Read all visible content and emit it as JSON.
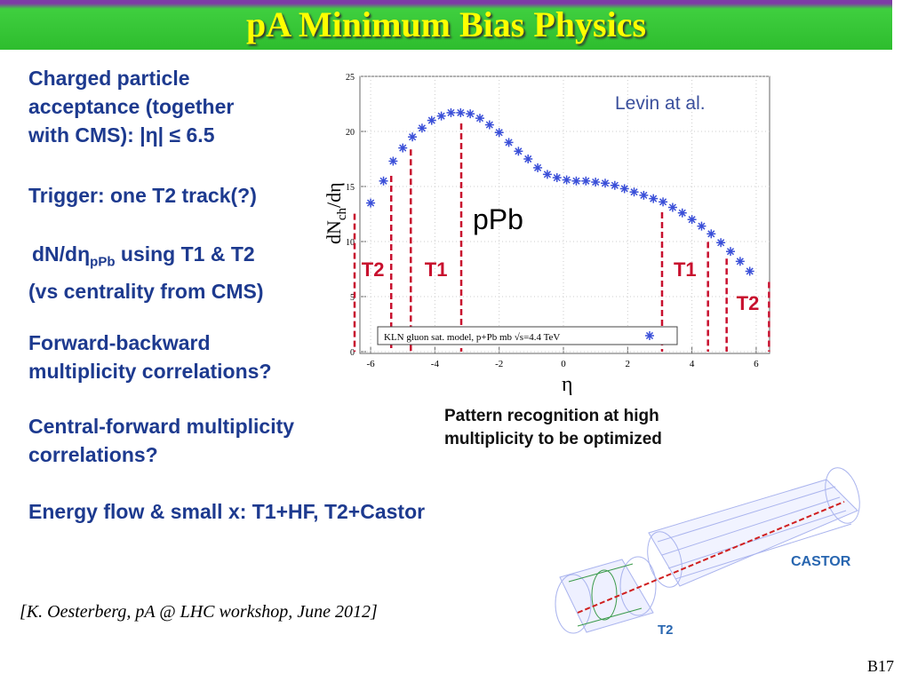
{
  "header": {
    "title": "pA Minimum Bias Physics"
  },
  "bullets": [
    {
      "lines": [
        "Charged particle",
        "acceptance (together",
        "with CMS): |η| ≤ 6.5"
      ]
    },
    {
      "lines": [
        "Trigger: one T2 track(?)"
      ]
    },
    {
      "main": "dN/dη",
      "sub": "pPb",
      "rest": " using T1 & T2",
      "line2": "(vs centrality from CMS)"
    },
    {
      "lines": [
        "Forward-backward",
        "multiplicity correlations?"
      ]
    },
    {
      "lines": [
        "Central-forward multiplicity",
        "correlations?"
      ]
    },
    {
      "lines": [
        "Energy flow & small x: T1+HF, T2+Castor"
      ]
    }
  ],
  "chart_data": {
    "type": "scatter",
    "ylabel": "dN",
    "ylabel_sub": "ch",
    "ylabel_rest": "/dη",
    "xlabel": "η",
    "annotations": [
      "Levin at al.",
      "pPb"
    ],
    "legend": "KLN gluon sat. model, p+Pb mb √s=4.4 TeV",
    "xlim": [
      -6.5,
      6.5
    ],
    "ylim": [
      0,
      25
    ],
    "xticks": [
      -6,
      -4,
      -2,
      0,
      2,
      4,
      6
    ],
    "yticks": [
      0,
      5,
      10,
      15,
      20,
      25
    ],
    "series": [
      {
        "name": "KLN gluon sat. model",
        "color": "#3a4fd8",
        "x": [
          -6.0,
          -5.6,
          -5.3,
          -5.0,
          -4.7,
          -4.4,
          -4.1,
          -3.8,
          -3.5,
          -3.2,
          -2.9,
          -2.6,
          -2.3,
          -2.0,
          -1.7,
          -1.4,
          -1.1,
          -0.8,
          -0.5,
          -0.2,
          0.1,
          0.4,
          0.7,
          1.0,
          1.3,
          1.6,
          1.9,
          2.2,
          2.5,
          2.8,
          3.1,
          3.4,
          3.7,
          4.0,
          4.3,
          4.6,
          4.9,
          5.2,
          5.5,
          5.8
        ],
        "values": [
          13.5,
          15.5,
          17.3,
          18.5,
          19.5,
          20.3,
          21.0,
          21.4,
          21.7,
          21.7,
          21.6,
          21.2,
          20.6,
          19.9,
          19.0,
          18.2,
          17.5,
          16.7,
          16.1,
          15.8,
          15.6,
          15.5,
          15.5,
          15.4,
          15.3,
          15.1,
          14.8,
          14.5,
          14.2,
          13.9,
          13.6,
          13.1,
          12.6,
          12.0,
          11.4,
          10.7,
          9.9,
          9.1,
          8.2,
          7.3
        ]
      }
    ],
    "regions": [
      {
        "label": "T2",
        "eta": [
          -6.5,
          -5.36
        ]
      },
      {
        "label": "T1",
        "eta": [
          -4.75,
          -3.18
        ]
      },
      {
        "label": "T1",
        "eta": [
          3.07,
          4.5
        ]
      },
      {
        "label": "T2",
        "eta": [
          5.08,
          6.4
        ]
      }
    ],
    "region_color": "#c8102e"
  },
  "caption": [
    "Pattern recognition at high",
    "multiplicity to be optimized"
  ],
  "detector": {
    "labels": [
      "CASTOR",
      "T2"
    ]
  },
  "citation": "[K. Oesterberg, pA @ LHC workshop, June 2012]",
  "page_number": "B17"
}
